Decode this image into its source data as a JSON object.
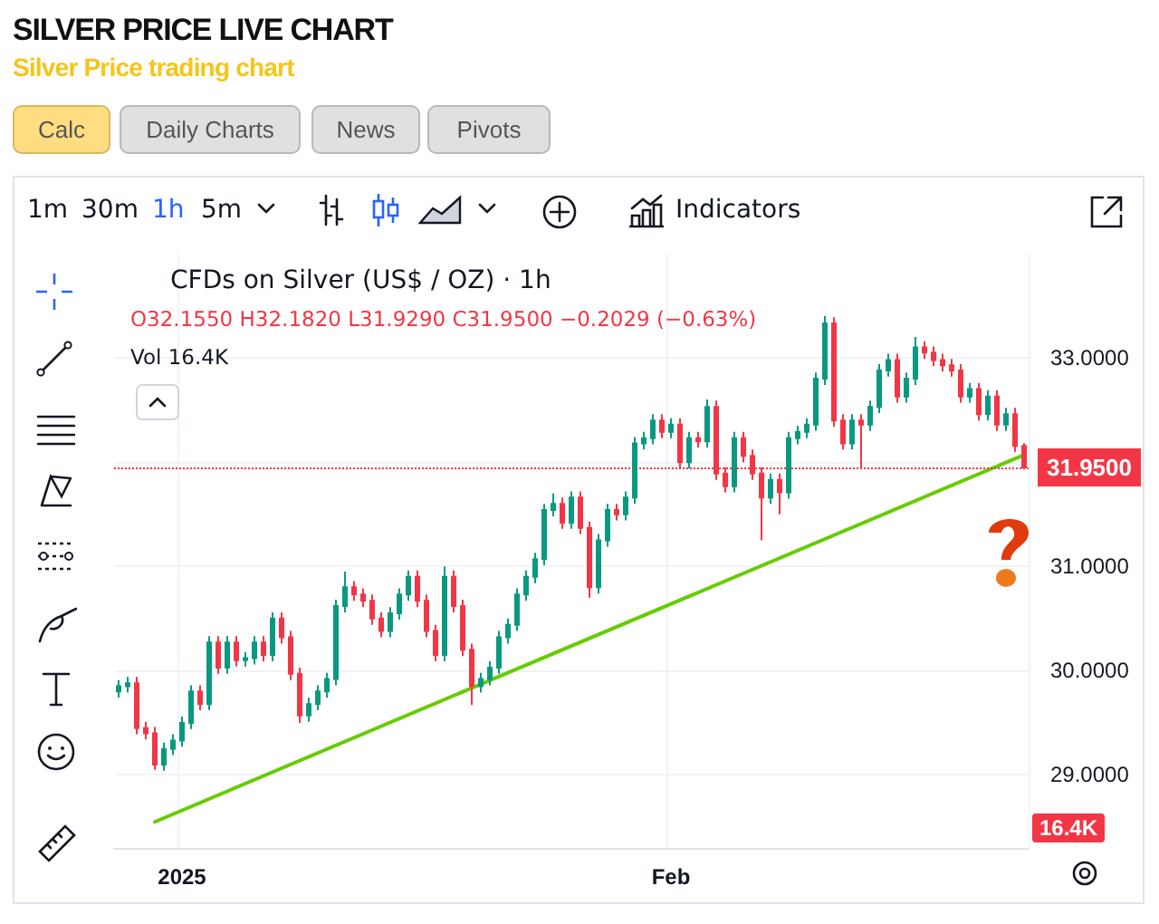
{
  "chart_data": {
    "type": "candlestick",
    "title": "SILVER PRICE LIVE CHART",
    "subtitle": "Silver Price trading chart",
    "categories": [
      null,
      null,
      null,
      null,
      null,
      null,
      null,
      "2025",
      null,
      null,
      null,
      null,
      null,
      null,
      null,
      null,
      null,
      null,
      null,
      null,
      null,
      null,
      null,
      null,
      null,
      null,
      null,
      null,
      null,
      null,
      null,
      null,
      null,
      null,
      null,
      null,
      null,
      null,
      null,
      null,
      null,
      null,
      null,
      null,
      null,
      null,
      null,
      null,
      null,
      null,
      null,
      null,
      null,
      null,
      null,
      null,
      null,
      null,
      null,
      null,
      null,
      "Feb",
      null,
      null,
      null,
      null,
      null,
      null,
      null,
      null,
      null,
      null,
      null,
      null,
      null,
      null,
      null,
      null,
      null,
      null,
      null,
      null,
      null,
      null,
      null,
      null,
      null,
      null,
      null,
      null,
      null,
      null,
      null,
      null,
      null,
      null,
      null,
      null,
      null,
      null,
      null
    ],
    "series": [
      {
        "ohlc": [
          [
            29.8,
            29.91,
            29.74,
            29.85
          ],
          [
            29.85,
            29.94,
            29.79,
            29.88
          ],
          [
            29.88,
            29.94,
            29.39,
            29.45
          ],
          [
            29.45,
            29.51,
            29.34,
            29.4
          ],
          [
            29.4,
            29.46,
            29.05,
            29.1
          ],
          [
            29.1,
            29.31,
            29.04,
            29.25
          ],
          [
            29.25,
            29.39,
            29.19,
            29.33
          ],
          [
            29.33,
            29.56,
            29.27,
            29.5
          ],
          [
            29.5,
            29.86,
            29.44,
            29.8
          ],
          [
            29.8,
            29.86,
            29.62,
            29.68
          ],
          [
            29.68,
            30.33,
            29.62,
            30.27
          ],
          [
            30.27,
            30.33,
            29.97,
            30.03
          ],
          [
            30.03,
            30.33,
            29.97,
            30.27
          ],
          [
            30.27,
            30.33,
            30.04,
            30.1
          ],
          [
            30.1,
            30.18,
            30.04,
            30.12
          ],
          [
            30.12,
            30.33,
            30.06,
            30.27
          ],
          [
            30.27,
            30.33,
            30.09,
            30.15
          ],
          [
            30.15,
            30.56,
            30.09,
            30.5
          ],
          [
            30.5,
            30.56,
            30.26,
            30.32
          ],
          [
            30.32,
            30.38,
            29.91,
            29.97
          ],
          [
            29.97,
            30.03,
            29.5,
            29.57
          ],
          [
            29.57,
            29.74,
            29.51,
            29.68
          ],
          [
            29.68,
            29.86,
            29.62,
            29.8
          ],
          [
            29.8,
            29.98,
            29.74,
            29.92
          ],
          [
            29.92,
            30.68,
            29.86,
            30.62
          ],
          [
            30.62,
            30.95,
            30.56,
            30.8
          ],
          [
            30.8,
            30.86,
            30.67,
            30.73
          ],
          [
            30.73,
            30.79,
            30.61,
            30.67
          ],
          [
            30.67,
            30.73,
            30.44,
            30.5
          ],
          [
            30.5,
            30.56,
            30.32,
            30.38
          ],
          [
            30.38,
            30.61,
            30.32,
            30.55
          ],
          [
            30.55,
            30.79,
            30.49,
            30.73
          ],
          [
            30.73,
            30.96,
            30.67,
            30.9
          ],
          [
            30.9,
            30.96,
            30.61,
            30.67
          ],
          [
            30.67,
            30.73,
            30.32,
            30.38
          ],
          [
            30.38,
            30.44,
            30.09,
            30.15
          ],
          [
            30.15,
            31.0,
            30.09,
            30.9
          ],
          [
            30.9,
            30.96,
            30.56,
            30.62
          ],
          [
            30.62,
            30.68,
            30.14,
            30.2
          ],
          [
            30.2,
            30.26,
            29.67,
            29.85
          ],
          [
            29.85,
            29.98,
            29.79,
            29.92
          ],
          [
            29.92,
            30.09,
            29.86,
            30.03
          ],
          [
            30.03,
            30.38,
            29.97,
            30.32
          ],
          [
            30.32,
            30.5,
            30.26,
            30.44
          ],
          [
            30.44,
            30.79,
            30.38,
            30.73
          ],
          [
            30.73,
            30.96,
            30.67,
            30.9
          ],
          [
            30.9,
            31.13,
            30.84,
            31.07
          ],
          [
            31.07,
            31.6,
            31.01,
            31.54
          ],
          [
            31.54,
            31.7,
            31.48,
            31.6
          ],
          [
            31.6,
            31.66,
            31.36,
            31.42
          ],
          [
            31.42,
            31.72,
            31.36,
            31.66
          ],
          [
            31.66,
            31.72,
            31.31,
            31.37
          ],
          [
            31.37,
            31.43,
            30.7,
            30.8
          ],
          [
            30.8,
            31.31,
            30.74,
            31.25
          ],
          [
            31.25,
            31.6,
            31.19,
            31.54
          ],
          [
            31.54,
            31.6,
            31.44,
            31.5
          ],
          [
            31.5,
            31.72,
            31.44,
            31.66
          ],
          [
            31.66,
            32.24,
            31.6,
            32.18
          ],
          [
            32.18,
            32.29,
            32.12,
            32.23
          ],
          [
            32.23,
            32.46,
            32.17,
            32.4
          ],
          [
            32.4,
            32.46,
            32.23,
            32.29
          ],
          [
            32.29,
            32.42,
            32.23,
            32.36
          ],
          [
            32.36,
            32.42,
            31.94,
            32.0
          ],
          [
            32.0,
            32.29,
            31.94,
            32.23
          ],
          [
            32.23,
            32.29,
            32.14,
            32.2
          ],
          [
            32.2,
            32.6,
            32.14,
            32.53
          ],
          [
            32.53,
            32.59,
            31.83,
            31.89
          ],
          [
            31.89,
            31.95,
            31.71,
            31.77
          ],
          [
            31.77,
            32.29,
            31.71,
            32.23
          ],
          [
            32.23,
            32.29,
            32.0,
            32.06
          ],
          [
            32.06,
            32.12,
            31.83,
            31.89
          ],
          [
            31.89,
            31.95,
            31.25,
            31.66
          ],
          [
            31.66,
            31.89,
            31.6,
            31.83
          ],
          [
            31.83,
            31.89,
            31.5,
            31.71
          ],
          [
            31.71,
            32.29,
            31.65,
            32.23
          ],
          [
            32.23,
            32.35,
            32.17,
            32.29
          ],
          [
            32.29,
            32.42,
            32.23,
            32.36
          ],
          [
            32.36,
            32.86,
            32.3,
            32.8
          ],
          [
            32.8,
            33.4,
            32.74,
            33.33
          ],
          [
            33.33,
            33.39,
            32.34,
            32.4
          ],
          [
            32.4,
            32.46,
            32.12,
            32.18
          ],
          [
            32.18,
            32.46,
            32.12,
            32.4
          ],
          [
            32.4,
            32.46,
            31.95,
            32.36
          ],
          [
            32.36,
            32.59,
            32.3,
            32.53
          ],
          [
            32.53,
            32.94,
            32.47,
            32.88
          ],
          [
            32.88,
            33.04,
            32.82,
            32.98
          ],
          [
            32.98,
            33.04,
            32.57,
            32.63
          ],
          [
            32.63,
            32.86,
            32.57,
            32.8
          ],
          [
            32.8,
            33.2,
            32.74,
            33.1
          ],
          [
            33.1,
            33.16,
            32.99,
            33.05
          ],
          [
            33.05,
            33.11,
            32.92,
            32.98
          ],
          [
            32.98,
            33.04,
            32.87,
            32.93
          ],
          [
            32.93,
            32.99,
            32.82,
            32.88
          ],
          [
            32.88,
            32.94,
            32.57,
            32.63
          ],
          [
            32.63,
            32.76,
            32.57,
            32.7
          ],
          [
            32.7,
            32.76,
            32.4,
            32.46
          ],
          [
            32.46,
            32.69,
            32.4,
            32.63
          ],
          [
            32.63,
            32.69,
            32.3,
            32.36
          ],
          [
            32.36,
            32.52,
            32.3,
            32.46
          ],
          [
            32.46,
            32.52,
            32.1,
            32.155
          ],
          [
            32.155,
            32.182,
            31.929,
            31.95
          ]
        ],
        "colors": [
          "#089981",
          "#089981",
          "#f23645",
          "#f23645",
          "#f23645",
          "#089981",
          "#089981",
          "#089981",
          "#089981",
          "#f23645",
          "#089981",
          "#f23645",
          "#089981",
          "#f23645",
          "#089981",
          "#089981",
          "#f23645",
          "#089981",
          "#f23645",
          "#f23645",
          "#f23645",
          "#089981",
          "#089981",
          "#089981",
          "#089981",
          "#089981",
          "#f23645",
          "#f23645",
          "#f23645",
          "#f23645",
          "#089981",
          "#089981",
          "#089981",
          "#f23645",
          "#f23645",
          "#f23645",
          "#089981",
          "#f23645",
          "#f23645",
          "#f23645",
          "#089981",
          "#089981",
          "#089981",
          "#089981",
          "#089981",
          "#089981",
          "#089981",
          "#089981",
          "#089981",
          "#f23645",
          "#089981",
          "#f23645",
          "#f23645",
          "#089981",
          "#089981",
          "#f23645",
          "#089981",
          "#089981",
          "#089981",
          "#089981",
          "#f23645",
          "#089981",
          "#f23645",
          "#089981",
          "#f23645",
          "#089981",
          "#f23645",
          "#f23645",
          "#089981",
          "#f23645",
          "#f23645",
          "#f23645",
          "#089981",
          "#f23645",
          "#089981",
          "#089981",
          "#089981",
          "#089981",
          "#089981",
          "#f23645",
          "#f23645",
          "#089981",
          "#f23645",
          "#089981",
          "#089981",
          "#089981",
          "#f23645",
          "#089981",
          "#089981",
          "#f23645",
          "#f23645",
          "#f23645",
          "#f23645",
          "#f23645",
          "#089981",
          "#f23645",
          "#089981",
          "#f23645",
          "#089981",
          "#f23645",
          "#f23645"
        ]
      },
      {
        "type": "line",
        "color": "#66cc00",
        "values": [
          null,
          null,
          null,
          null,
          28.55,
          null,
          null,
          null,
          null,
          null,
          null,
          null,
          null,
          null,
          null,
          null,
          null,
          null,
          null,
          null,
          null,
          null,
          null,
          null,
          null,
          null,
          null,
          null,
          null,
          null,
          null,
          null,
          null,
          null,
          null,
          null,
          null,
          null,
          null,
          null,
          null,
          null,
          null,
          null,
          null,
          null,
          null,
          null,
          null,
          null,
          null,
          null,
          null,
          null,
          null,
          null,
          null,
          null,
          null,
          null,
          null,
          null,
          null,
          null,
          null,
          null,
          null,
          null,
          null,
          null,
          null,
          null,
          null,
          null,
          null,
          null,
          null,
          null,
          null,
          null,
          null,
          null,
          null,
          null,
          null,
          null,
          null,
          null,
          null,
          null,
          null,
          null,
          null,
          null,
          null,
          null,
          null,
          null,
          null,
          null,
          32.07
        ]
      }
    ],
    "ylim": [
      28.3,
      34.0
    ],
    "yticks": [
      {
        "value": 29,
        "label": "29.0000"
      },
      {
        "value": 30,
        "label": "30.0000"
      },
      {
        "value": 31,
        "label": "31.0000"
      },
      {
        "value": 32,
        "label": null
      },
      {
        "value": 33,
        "label": "33.0000"
      }
    ],
    "tick_labels": "xy",
    "grid": true,
    "marker": "none",
    "ref_lines": [
      {
        "axis": "y",
        "value": 31.95,
        "label": "31.9500",
        "color": "#f23645",
        "line_style": "dotted"
      }
    ],
    "annotations": [
      "CFDs on Silver (US$ / OZ) · 1h",
      "O32.1550 H32.1820 L31.9290 C31.9500 −0.2029 (−0.63%)",
      "Vol 16.4K",
      "16.4K",
      "Calc",
      "Daily Charts",
      "News",
      "Pivots",
      "1m",
      "30m",
      "1h",
      "5m",
      "Indicators"
    ]
  }
}
